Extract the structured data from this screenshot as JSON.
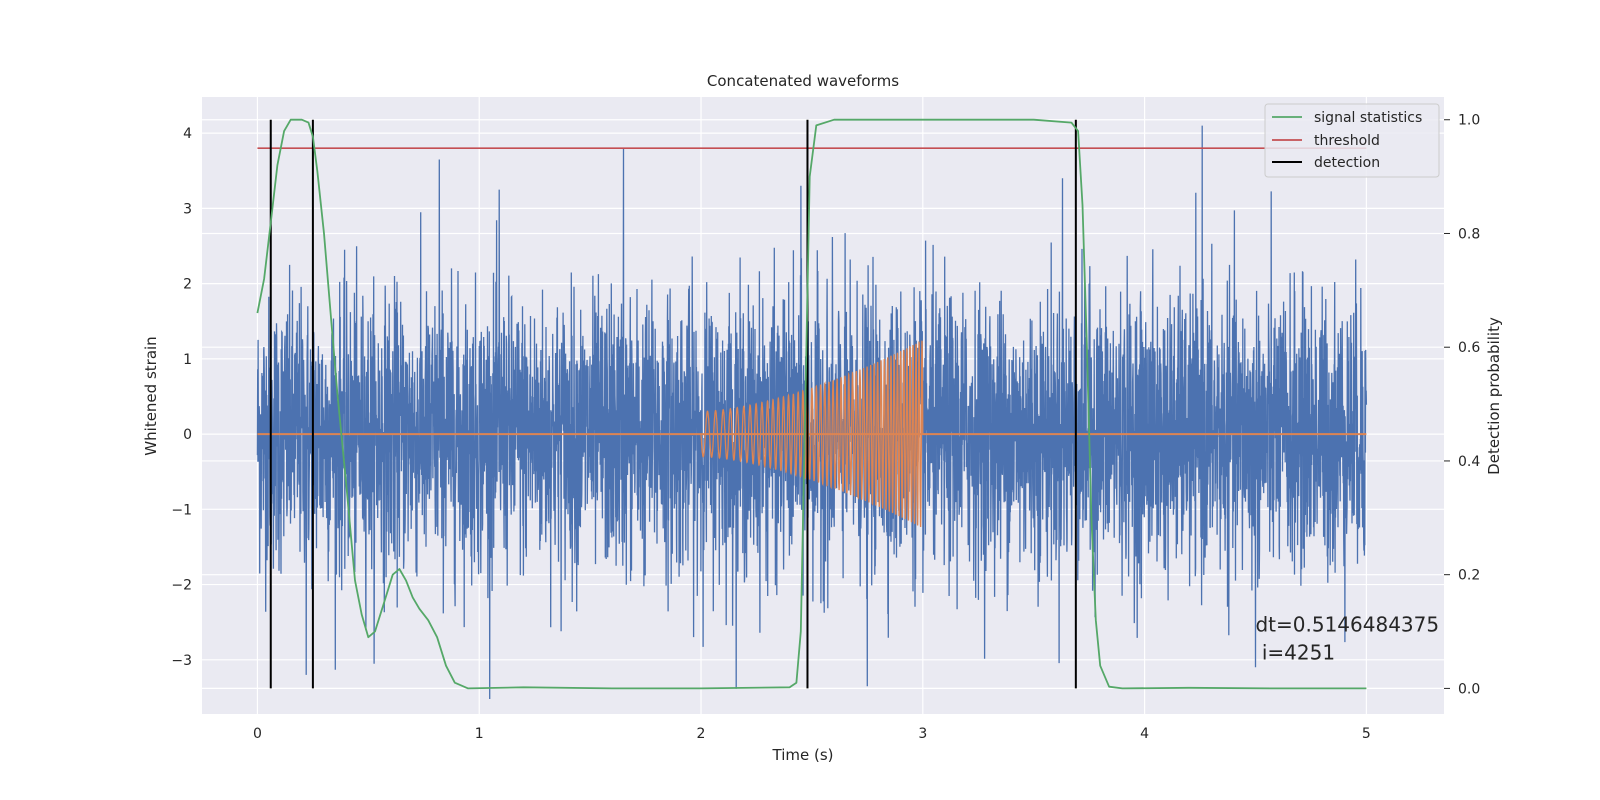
{
  "chart_data": {
    "type": "line",
    "title": "Concatenated waveforms",
    "xlabel": "Time (s)",
    "ylabel": "Whitened strain",
    "y2label": "Detection probability",
    "xlim": [
      -0.25,
      5.35
    ],
    "ylim": [
      -3.72,
      4.48
    ],
    "y2lim": [
      -0.045,
      1.04
    ],
    "xticks": [
      0,
      1,
      2,
      3,
      4,
      5
    ],
    "xtick_labels": [
      "0",
      "1",
      "2",
      "3",
      "4",
      "5"
    ],
    "yticks": [
      -3,
      -2,
      -1,
      0,
      1,
      2,
      3,
      4
    ],
    "ytick_labels": [
      "−3",
      "−2",
      "−1",
      "0",
      "1",
      "2",
      "3",
      "4"
    ],
    "y2ticks": [
      0.0,
      0.2,
      0.4,
      0.6,
      0.8,
      1.0
    ],
    "y2tick_labels": [
      "0.0",
      "0.2",
      "0.4",
      "0.6",
      "0.8",
      "1.0"
    ],
    "grid": true,
    "colors": {
      "strain": "#4c72b0",
      "template": "#dd8452",
      "signal_statistics": "#55a868",
      "threshold": "#c44e52",
      "detection": "#000000",
      "plot_bg": "#eaeaf2",
      "grid": "#ffffff"
    },
    "series": [
      {
        "name": "whitened strain",
        "axis": "left",
        "style": "noise",
        "x_range": [
          0,
          5
        ],
        "mean": 0,
        "typical_range": [
          -2.3,
          2.6
        ],
        "peaks": [
          [
            0.82,
            3.65
          ],
          [
            1.09,
            3.25
          ],
          [
            1.65,
            3.8
          ],
          [
            2.45,
            3.3
          ],
          [
            3.63,
            3.4
          ],
          [
            4.26,
            4.1
          ],
          [
            0.22,
            -3.2
          ],
          [
            2.75,
            -3.35
          ],
          [
            4.5,
            -3.1
          ]
        ]
      },
      {
        "name": "template waveform",
        "axis": "left",
        "style": "chirp",
        "x_range": [
          2.0,
          3.0
        ],
        "amplitude_start": 0.3,
        "amplitude_end": 1.25,
        "frequency_start": 25,
        "frequency_end": 75,
        "baseline_x_range": [
          0,
          5
        ]
      },
      {
        "name": "signal statistics",
        "axis": "right",
        "points": [
          [
            0.0,
            0.66
          ],
          [
            0.03,
            0.72
          ],
          [
            0.06,
            0.82
          ],
          [
            0.09,
            0.92
          ],
          [
            0.12,
            0.98
          ],
          [
            0.15,
            1.0
          ],
          [
            0.2,
            1.0
          ],
          [
            0.23,
            0.995
          ],
          [
            0.25,
            0.97
          ],
          [
            0.27,
            0.91
          ],
          [
            0.3,
            0.8
          ],
          [
            0.33,
            0.66
          ],
          [
            0.36,
            0.52
          ],
          [
            0.4,
            0.36
          ],
          [
            0.44,
            0.19
          ],
          [
            0.47,
            0.13
          ],
          [
            0.5,
            0.09
          ],
          [
            0.53,
            0.1
          ],
          [
            0.57,
            0.15
          ],
          [
            0.61,
            0.2
          ],
          [
            0.64,
            0.21
          ],
          [
            0.67,
            0.19
          ],
          [
            0.7,
            0.16
          ],
          [
            0.73,
            0.14
          ],
          [
            0.77,
            0.12
          ],
          [
            0.81,
            0.09
          ],
          [
            0.85,
            0.04
          ],
          [
            0.89,
            0.01
          ],
          [
            0.95,
            0.0
          ],
          [
            1.2,
            0.002
          ],
          [
            1.6,
            0.0
          ],
          [
            2.0,
            0.0
          ],
          [
            2.4,
            0.002
          ],
          [
            2.43,
            0.01
          ],
          [
            2.45,
            0.1
          ],
          [
            2.47,
            0.5
          ],
          [
            2.49,
            0.9
          ],
          [
            2.52,
            0.99
          ],
          [
            2.6,
            1.0
          ],
          [
            3.0,
            1.0
          ],
          [
            3.5,
            1.0
          ],
          [
            3.67,
            0.995
          ],
          [
            3.7,
            0.98
          ],
          [
            3.72,
            0.85
          ],
          [
            3.74,
            0.6
          ],
          [
            3.76,
            0.3
          ],
          [
            3.78,
            0.12
          ],
          [
            3.8,
            0.04
          ],
          [
            3.84,
            0.003
          ],
          [
            3.9,
            0.0
          ],
          [
            4.2,
            0.001
          ],
          [
            4.6,
            0.0
          ],
          [
            5.0,
            0.0
          ]
        ]
      },
      {
        "name": "threshold",
        "axis": "right",
        "x_range": [
          0,
          5
        ],
        "value": 0.95
      },
      {
        "name": "detection",
        "axis": "right",
        "vlines": [
          0.06,
          0.25,
          2.48,
          3.69
        ],
        "ymin": 0.0,
        "ymax": 1.0
      }
    ],
    "legend": {
      "placement": "top-right",
      "entries": [
        "signal statistics",
        "threshold",
        "detection"
      ]
    },
    "annotation": {
      "line1": "dt=0.5146484375",
      "line2": " i=4251",
      "x": 4.5,
      "y2": 0.1
    }
  }
}
